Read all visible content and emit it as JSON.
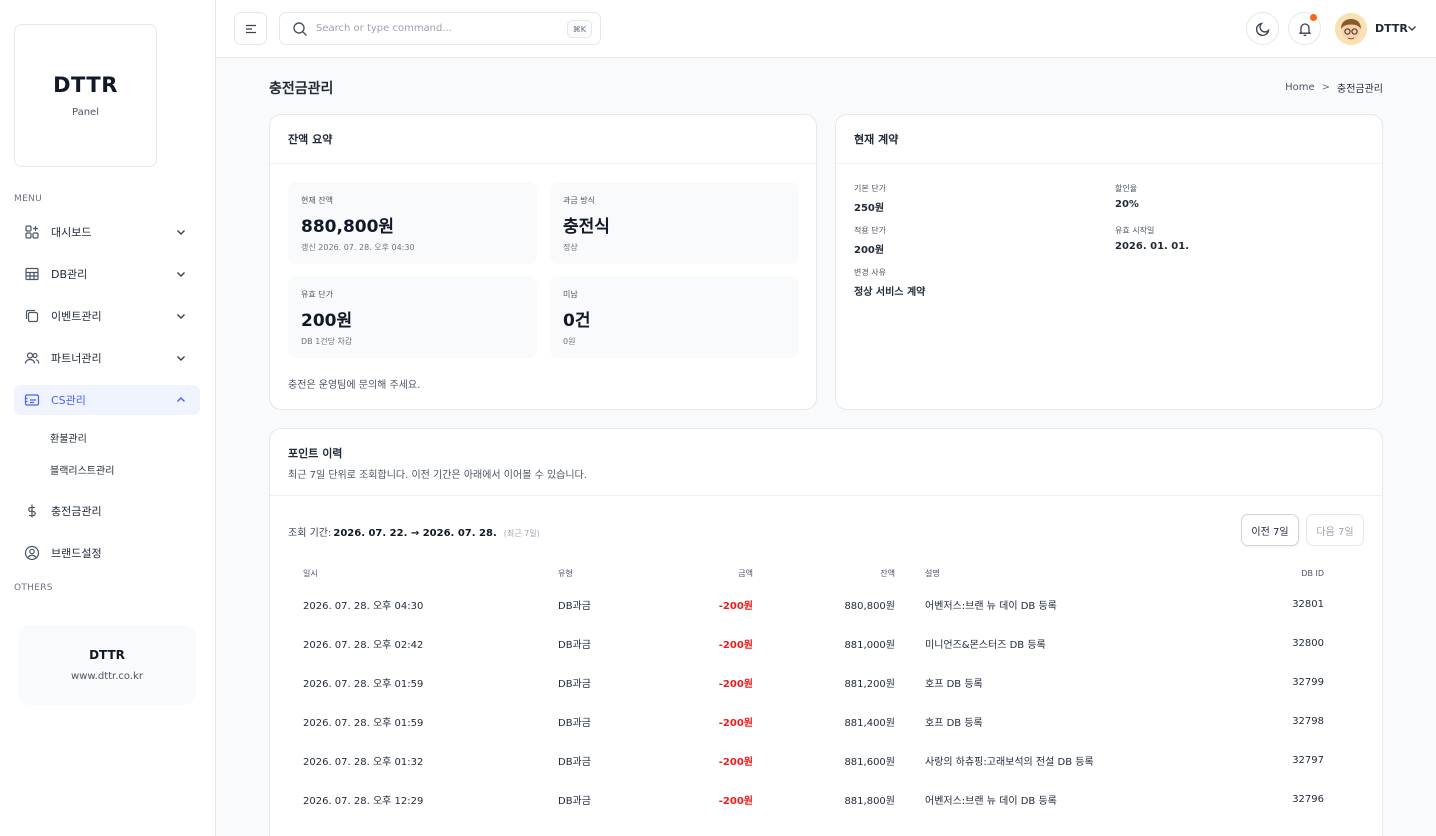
{
  "sidebar": {
    "logo_title": "DTTR",
    "logo_sub": "Panel",
    "menu_label": "MENU",
    "others_label": "OTHERS",
    "items": [
      {
        "label": "대시보드"
      },
      {
        "label": "DB관리"
      },
      {
        "label": "이벤트관리"
      },
      {
        "label": "파트너관리"
      },
      {
        "label": "CS관리"
      },
      {
        "label": "충전금관리"
      },
      {
        "label": "브랜드설정"
      }
    ],
    "sub_items": [
      {
        "label": "환불관리"
      },
      {
        "label": "블랙리스트관리"
      }
    ],
    "promo": {
      "title": "DTTR",
      "url": "www.dttr.co.kr"
    }
  },
  "header": {
    "search_placeholder": "Search or type command...",
    "search_shortcut": "⌘K",
    "user_name": "DTTR"
  },
  "page": {
    "title": "충전금관리",
    "breadcrumb_home": "Home",
    "breadcrumb_sep": ">",
    "breadcrumb_current": "충전금관리"
  },
  "summary": {
    "title": "잔액 요약",
    "stats": [
      {
        "label": "현재 잔액",
        "value": "880,800원",
        "sub": "갱신 2026. 07. 28. 오후 04:30"
      },
      {
        "label": "과금 방식",
        "value": "충전식",
        "sub": "정상"
      },
      {
        "label": "유효 단가",
        "value": "200원",
        "sub": "DB 1건당 차감"
      },
      {
        "label": "미납",
        "value": "0건",
        "sub": "0원"
      }
    ],
    "note": "충전은 운영팀에 문의해 주세요."
  },
  "contract": {
    "title": "현재 계약",
    "fields": [
      {
        "label": "기본 단가",
        "value": "250원"
      },
      {
        "label": "할인율",
        "value": "20%"
      },
      {
        "label": "적용 단가",
        "value": "200원"
      },
      {
        "label": "유효 시작일",
        "value": "2026. 01. 01."
      },
      {
        "label": "변경 사유",
        "value": "정상 서비스 계약"
      }
    ]
  },
  "history": {
    "title": "포인트 이력",
    "subtitle": "최근 7일 단위로 조회합니다. 이전 기간은 아래에서 이어볼 수 있습니다.",
    "period_label": "조회 기간:",
    "period_value": "2026. 07. 22. → 2026. 07. 28.",
    "period_note": "(최근 7일)",
    "prev_label": "이전 7일",
    "next_label": "다음 7일",
    "columns": {
      "date": "일시",
      "type": "유형",
      "amount": "금액",
      "balance": "잔액",
      "desc": "설명",
      "dbid": "DB ID"
    },
    "rows": [
      {
        "date": "2026. 07. 28. 오후 04:30",
        "type": "DB과금",
        "amount": "-200원",
        "balance": "880,800원",
        "desc": "어벤저스:브랜 뉴 데이 DB 등록",
        "dbid": "32801"
      },
      {
        "date": "2026. 07. 28. 오후 02:42",
        "type": "DB과금",
        "amount": "-200원",
        "balance": "881,000원",
        "desc": "미니언즈&몬스터즈 DB 등록",
        "dbid": "32800"
      },
      {
        "date": "2026. 07. 28. 오후 01:59",
        "type": "DB과금",
        "amount": "-200원",
        "balance": "881,200원",
        "desc": "호프 DB 등록",
        "dbid": "32799"
      },
      {
        "date": "2026. 07. 28. 오후 01:59",
        "type": "DB과금",
        "amount": "-200원",
        "balance": "881,400원",
        "desc": "호프 DB 등록",
        "dbid": "32798"
      },
      {
        "date": "2026. 07. 28. 오후 01:32",
        "type": "DB과금",
        "amount": "-200원",
        "balance": "881,600원",
        "desc": "사랑의 하츄핑:고래보석의 전설 DB 등록",
        "dbid": "32797"
      },
      {
        "date": "2026. 07. 28. 오후 12:29",
        "type": "DB과금",
        "amount": "-200원",
        "balance": "881,800원",
        "desc": "어벤저스:브랜 뉴 데이 DB 등록",
        "dbid": "32796"
      }
    ]
  },
  "colors": {
    "accent": "#465fff",
    "negative": "#ef1b1b",
    "notification": "#fb6514"
  }
}
